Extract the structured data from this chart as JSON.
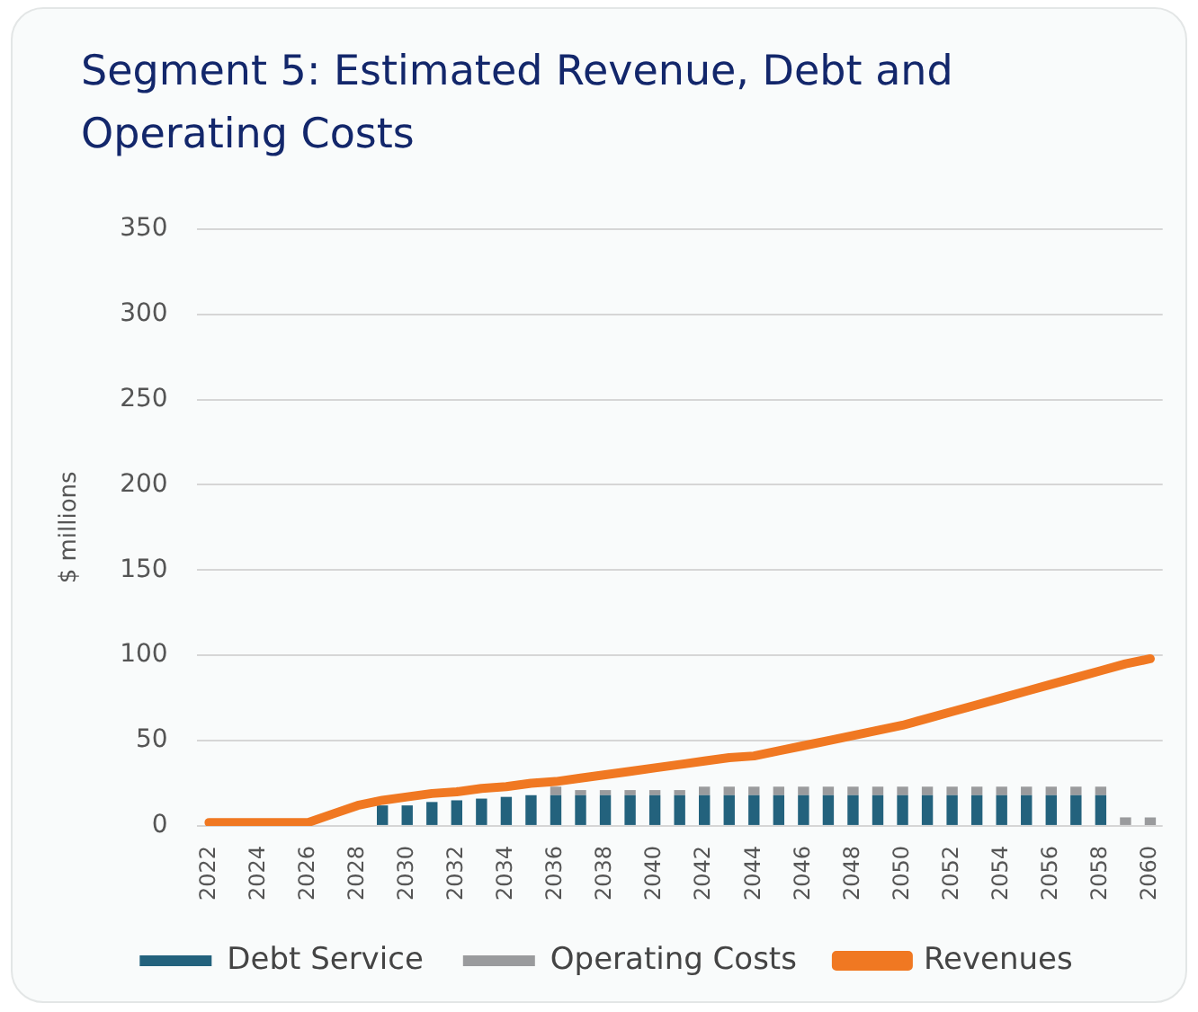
{
  "chart_data": {
    "type": "bar",
    "title": "Segment 5: Estimated Revenue, Debt and Operating Costs",
    "ylabel": "$ millions",
    "categories": [
      "2022",
      null,
      "2024",
      null,
      "2026",
      null,
      "2028",
      null,
      "2030",
      null,
      "2032",
      null,
      "2034",
      null,
      "2036",
      null,
      "2038",
      null,
      "2040",
      null,
      "2042",
      null,
      "2044",
      null,
      "2046",
      null,
      "2048",
      null,
      "2050",
      null,
      "2052",
      null,
      "2054",
      null,
      "2056",
      null,
      "2058",
      null,
      "2060"
    ],
    "stacked": true,
    "ylim": [
      0,
      350
    ],
    "yticks": [
      0,
      50,
      100,
      150,
      200,
      250,
      300,
      350
    ],
    "grid": "y",
    "legend": "bottom",
    "series": [
      {
        "name": "Debt Service",
        "color": "#23627d",
        "values": [
          0,
          0,
          0,
          0,
          0,
          0,
          0,
          12,
          12,
          14,
          15,
          16,
          17,
          18,
          18,
          18,
          18,
          18,
          18,
          18,
          18,
          18,
          18,
          18,
          18,
          18,
          18,
          18,
          18,
          18,
          18,
          18,
          18,
          18,
          18,
          18,
          18,
          0,
          0
        ]
      },
      {
        "name": "Operating Costs",
        "color": "#9a9b9d",
        "values": [
          0,
          0,
          0,
          0,
          0,
          0,
          0,
          0,
          0,
          0,
          0,
          0,
          0,
          0,
          5,
          3,
          3,
          3,
          3,
          3,
          5,
          5,
          5,
          5,
          5,
          5,
          5,
          5,
          5,
          5,
          5,
          5,
          5,
          5,
          5,
          5,
          5,
          5,
          5
        ]
      },
      {
        "name": "Revenues",
        "type": "line",
        "color": "#f07822",
        "values": [
          2,
          2,
          2,
          2,
          2,
          7,
          12,
          15,
          17,
          19,
          20,
          22,
          23,
          25,
          26,
          28,
          30,
          32,
          34,
          36,
          38,
          40,
          41,
          44,
          47,
          50,
          53,
          56,
          59,
          63,
          67,
          71,
          75,
          79,
          83,
          87,
          91,
          95,
          98
        ]
      }
    ]
  }
}
